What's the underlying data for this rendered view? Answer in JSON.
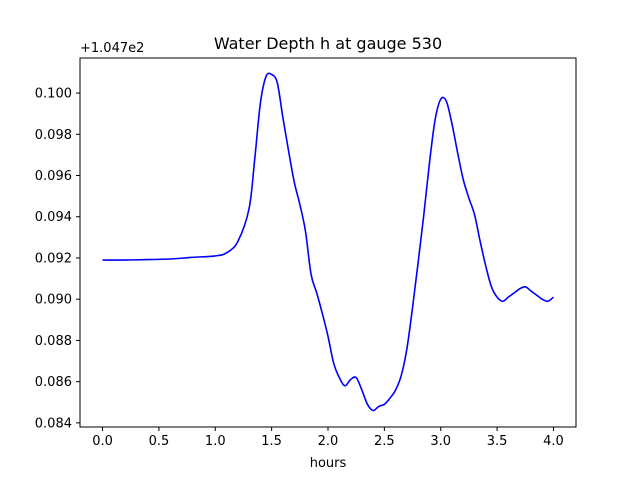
{
  "chart_data": {
    "type": "line",
    "title": "Water Depth h at gauge 530",
    "xlabel": "hours",
    "ylabel": "",
    "offset_text": "+1.047e2",
    "xlim": [
      -0.2,
      4.2
    ],
    "ylim": [
      0.0838,
      0.1017
    ],
    "grid": false,
    "x_ticks": [
      0.0,
      0.5,
      1.0,
      1.5,
      2.0,
      2.5,
      3.0,
      3.5,
      4.0
    ],
    "x_tick_labels": [
      "0.0",
      "0.5",
      "1.0",
      "1.5",
      "2.0",
      "2.5",
      "3.0",
      "3.5",
      "4.0"
    ],
    "y_ticks": [
      0.084,
      0.086,
      0.088,
      0.09,
      0.092,
      0.094,
      0.096,
      0.098,
      0.1
    ],
    "y_tick_labels": [
      "0.084",
      "0.086",
      "0.088",
      "0.090",
      "0.092",
      "0.094",
      "0.096",
      "0.098",
      "0.100"
    ],
    "series": [
      {
        "color": "#0000ff",
        "x": [
          0.0,
          0.2,
          0.4,
          0.6,
          0.8,
          1.0,
          1.1,
          1.2,
          1.3,
          1.35,
          1.4,
          1.45,
          1.5,
          1.55,
          1.6,
          1.65,
          1.7,
          1.75,
          1.8,
          1.85,
          1.9,
          1.95,
          2.0,
          2.05,
          2.1,
          2.15,
          2.2,
          2.25,
          2.3,
          2.35,
          2.4,
          2.45,
          2.5,
          2.55,
          2.6,
          2.65,
          2.7,
          2.75,
          2.8,
          2.85,
          2.9,
          2.95,
          3.0,
          3.05,
          3.1,
          3.15,
          3.2,
          3.25,
          3.3,
          3.35,
          3.4,
          3.45,
          3.5,
          3.55,
          3.6,
          3.65,
          3.7,
          3.75,
          3.8,
          3.85,
          3.9,
          3.95,
          4.0
        ],
        "y": [
          0.0919,
          0.0919,
          0.09192,
          0.09195,
          0.09203,
          0.0921,
          0.09225,
          0.0928,
          0.0944,
          0.0968,
          0.0995,
          0.1008,
          0.1009,
          0.1005,
          0.0988,
          0.0972,
          0.0957,
          0.0946,
          0.0933,
          0.0912,
          0.0903,
          0.0893,
          0.0882,
          0.0869,
          0.0862,
          0.0858,
          0.0861,
          0.0862,
          0.0856,
          0.0849,
          0.0846,
          0.0848,
          0.0849,
          0.0852,
          0.0856,
          0.0863,
          0.0876,
          0.0896,
          0.0918,
          0.0941,
          0.0966,
          0.0987,
          0.0997,
          0.0996,
          0.0985,
          0.0971,
          0.0958,
          0.0949,
          0.0941,
          0.0928,
          0.0916,
          0.0906,
          0.0901,
          0.0899,
          0.0901,
          0.0903,
          0.0905,
          0.0906,
          0.0904,
          0.0902,
          0.09,
          0.0899,
          0.0901
        ]
      }
    ]
  }
}
